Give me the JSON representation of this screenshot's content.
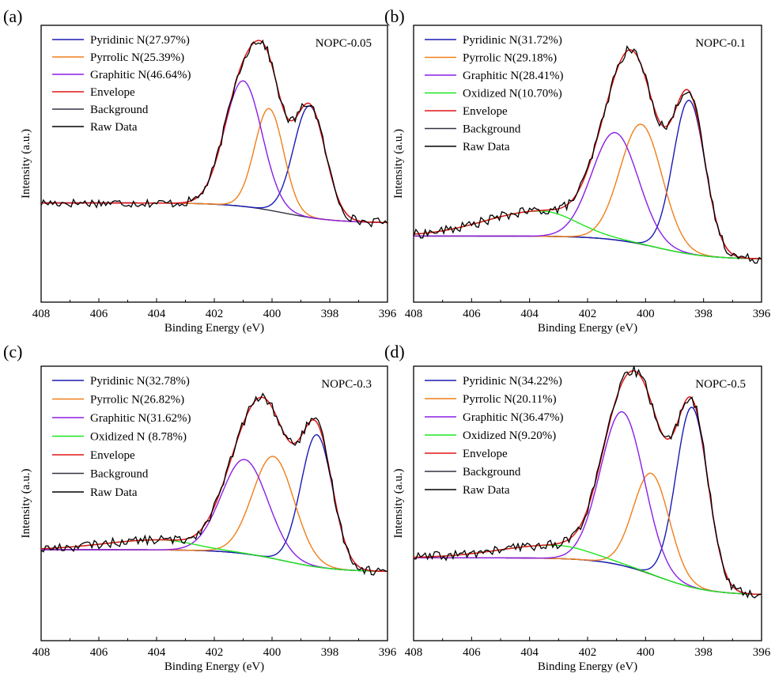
{
  "chart_data": [
    {
      "type": "line",
      "panel": "(a)",
      "sample": "NOPC-0.05",
      "xlabel": "Binding Energy (eV)",
      "ylabel": "Intensity (a.u.)",
      "xlim": [
        408,
        396
      ],
      "xticks": [
        408,
        406,
        404,
        402,
        400,
        398,
        396
      ],
      "xtick_labels": [
        "408",
        "406",
        "404",
        "402",
        "400",
        "398",
        "396"
      ],
      "ylim": [
        0,
        1
      ],
      "background": {
        "left": 0.22,
        "right": 0.12
      },
      "peaks": [
        {
          "name": "Pyridinic N(27.97%)",
          "color": "#1a1ab4",
          "center": 398.7,
          "height": 0.56,
          "sigma": 0.55,
          "wing": 0
        },
        {
          "name": "Pyrrolic N(25.39%)",
          "color": "#f07f1a",
          "center": 400.1,
          "height": 0.51,
          "sigma": 0.5,
          "wing": 0
        },
        {
          "name": "Graphitic N(46.64%)",
          "color": "#8a1ee6",
          "center": 401.0,
          "height": 0.63,
          "sigma": 0.65,
          "wing": 0
        }
      ],
      "curves": [
        {
          "name": "Envelope",
          "color": "#e01616"
        },
        {
          "name": "Background",
          "color": "#333344"
        },
        {
          "name": "Raw Data",
          "color": "#000000"
        }
      ]
    },
    {
      "type": "line",
      "panel": "(b)",
      "sample": "NOPC-0.1",
      "xlabel": "Binding Energy (eV)",
      "ylabel": "Intensity (a.u.)",
      "xlim": [
        408,
        396
      ],
      "xticks": [
        408,
        406,
        404,
        402,
        400,
        398,
        396
      ],
      "xtick_labels": [
        "408",
        "406",
        "404",
        "402",
        "400",
        "398",
        "396"
      ],
      "ylim": [
        0,
        1
      ],
      "background": {
        "left": 0.13,
        "right": 0.02
      },
      "peaks": [
        {
          "name": "Pyridinic N(31.72%)",
          "color": "#1a1ab4",
          "center": 398.5,
          "height": 0.73,
          "sigma": 0.55,
          "wing": 0
        },
        {
          "name": "Pyrrolic N(29.18%)",
          "color": "#f07f1a",
          "center": 400.15,
          "height": 0.57,
          "sigma": 0.72,
          "wing": 0
        },
        {
          "name": "Graphitic N(28.41%)",
          "color": "#8a1ee6",
          "center": 401.05,
          "height": 0.51,
          "sigma": 0.8,
          "wing": 0
        },
        {
          "name": "Oxidized N(10.70%)",
          "color": "#1ee61e",
          "center": 403.6,
          "height": 0.12,
          "sigma": 1.2,
          "wing": 1.6
        }
      ],
      "curves": [
        {
          "name": "Envelope",
          "color": "#e01616"
        },
        {
          "name": "Background",
          "color": "#333344"
        },
        {
          "name": "Raw Data",
          "color": "#000000"
        }
      ]
    },
    {
      "type": "line",
      "panel": "(c)",
      "sample": "NOPC-0.3",
      "xlabel": "Binding Energy (eV)",
      "ylabel": "Intensity (a.u.)",
      "xlim": [
        408,
        396
      ],
      "xticks": [
        408,
        406,
        404,
        402,
        400,
        398,
        396
      ],
      "xtick_labels": [
        "408",
        "406",
        "404",
        "402",
        "400",
        "398",
        "396"
      ],
      "ylim": [
        0,
        1
      ],
      "background": {
        "left": 0.18,
        "right": 0.07
      },
      "peaks": [
        {
          "name": "Pyridinic N(32.78%)",
          "color": "#1a1ab4",
          "center": 398.45,
          "height": 0.66,
          "sigma": 0.55,
          "wing": 0
        },
        {
          "name": "Pyrrolic N(26.82%)",
          "color": "#f07f1a",
          "center": 399.95,
          "height": 0.51,
          "sigma": 0.72,
          "wing": 0
        },
        {
          "name": "Graphitic N(31.62%)",
          "color": "#8a1ee6",
          "center": 400.95,
          "height": 0.47,
          "sigma": 0.8,
          "wing": 0
        },
        {
          "name": "Oxidized N (8.78%)",
          "color": "#1ee61e",
          "center": 403.9,
          "height": 0.05,
          "sigma": 1.2,
          "wing": 1.6
        }
      ],
      "curves": [
        {
          "name": "Envelope",
          "color": "#e01616"
        },
        {
          "name": "Background",
          "color": "#333344"
        },
        {
          "name": "Raw Data",
          "color": "#000000"
        }
      ]
    },
    {
      "type": "line",
      "panel": "(d)",
      "sample": "NOPC-0.5",
      "xlabel": "Binding Energy (eV)",
      "ylabel": "Intensity (a.u.)",
      "xlim": [
        408,
        396
      ],
      "xticks": [
        408,
        406,
        404,
        402,
        400,
        398,
        396
      ],
      "xtick_labels": [
        "408",
        "406",
        "404",
        "402",
        "400",
        "398",
        "396"
      ],
      "ylim": [
        0,
        1
      ],
      "background": {
        "left": 0.19,
        "right": 0.02
      },
      "peaks": [
        {
          "name": "Pyridinic N(34.22%)",
          "color": "#1a1ab4",
          "center": 398.4,
          "height": 0.82,
          "sigma": 0.55,
          "wing": 0
        },
        {
          "name": "Pyrrolic N(20.11%)",
          "color": "#f07f1a",
          "center": 399.8,
          "height": 0.46,
          "sigma": 0.62,
          "wing": 0
        },
        {
          "name": "Graphitic N(36.47%)",
          "color": "#8a1ee6",
          "center": 400.8,
          "height": 0.7,
          "sigma": 0.75,
          "wing": 0
        },
        {
          "name": "Oxidized N(9.20%)",
          "color": "#1ee61e",
          "center": 403.1,
          "height": 0.06,
          "sigma": 1.2,
          "wing": 1.6
        }
      ],
      "curves": [
        {
          "name": "Envelope",
          "color": "#e01616"
        },
        {
          "name": "Background",
          "color": "#333344"
        },
        {
          "name": "Raw Data",
          "color": "#000000"
        }
      ]
    }
  ]
}
